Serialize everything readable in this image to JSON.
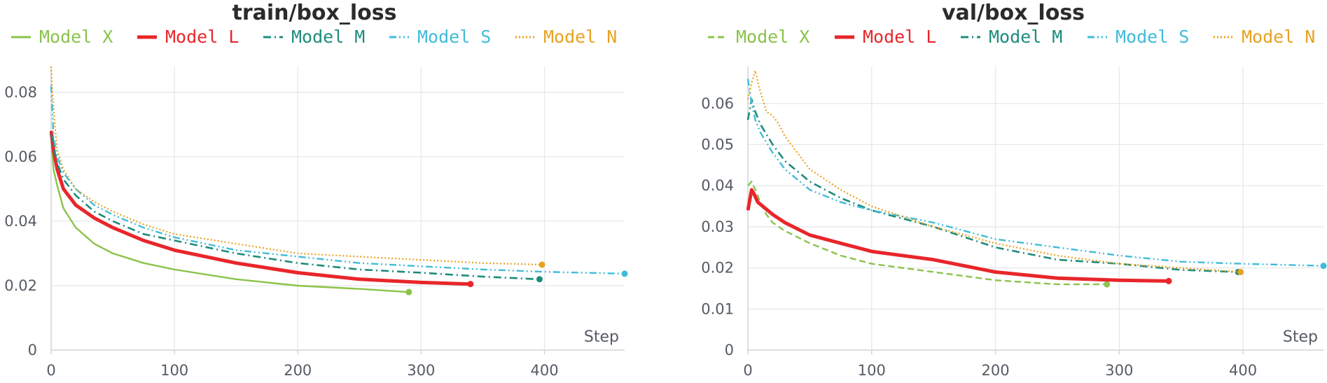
{
  "chart_data": [
    {
      "type": "line",
      "title": "train/box_loss",
      "xlabel": "Step",
      "ylabel": "",
      "xlim": [
        0,
        465
      ],
      "ylim": [
        0,
        0.088
      ],
      "xticks": [
        0,
        100,
        200,
        300,
        400
      ],
      "yticks": [
        0,
        0.02,
        0.04,
        0.06,
        0.08
      ],
      "xtick_labels": [
        "0",
        "100",
        "200",
        "300",
        "400"
      ],
      "ytick_labels": [
        "0",
        "0.02",
        "0.04",
        "0.06",
        "0.08"
      ],
      "grid": true,
      "legend_position": "top",
      "series": [
        {
          "name": "Model X",
          "color": "#8bc34a",
          "style": "solid",
          "x": [
            0,
            2,
            5,
            10,
            20,
            35,
            50,
            75,
            100,
            150,
            200,
            250,
            290
          ],
          "y": [
            0.066,
            0.056,
            0.051,
            0.044,
            0.038,
            0.033,
            0.03,
            0.027,
            0.025,
            0.022,
            0.02,
            0.019,
            0.018
          ]
        },
        {
          "name": "Model L",
          "color": "#e8262b",
          "style": "solid-bold",
          "x": [
            0,
            2,
            5,
            10,
            20,
            35,
            50,
            75,
            100,
            150,
            200,
            250,
            300,
            340
          ],
          "y": [
            0.068,
            0.062,
            0.056,
            0.05,
            0.045,
            0.041,
            0.038,
            0.034,
            0.031,
            0.027,
            0.024,
            0.022,
            0.021,
            0.0205
          ]
        },
        {
          "name": "Model M",
          "color": "#1d8c7c",
          "style": "dashdot",
          "x": [
            0,
            2,
            5,
            10,
            20,
            35,
            50,
            75,
            100,
            150,
            200,
            250,
            300,
            350,
            396
          ],
          "y": [
            0.067,
            0.063,
            0.058,
            0.053,
            0.048,
            0.043,
            0.04,
            0.036,
            0.034,
            0.03,
            0.027,
            0.025,
            0.024,
            0.0228,
            0.022
          ]
        },
        {
          "name": "Model S",
          "color": "#3fbcd9",
          "style": "dashdotdot",
          "x": [
            0,
            2,
            5,
            10,
            20,
            35,
            50,
            75,
            100,
            150,
            200,
            250,
            300,
            350,
            400,
            465
          ],
          "y": [
            0.082,
            0.066,
            0.06,
            0.055,
            0.05,
            0.045,
            0.042,
            0.038,
            0.035,
            0.031,
            0.029,
            0.027,
            0.026,
            0.025,
            0.0243,
            0.0237
          ]
        },
        {
          "name": "Model N",
          "color": "#e8a221",
          "style": "dotted",
          "x": [
            0,
            1,
            3,
            5,
            10,
            20,
            35,
            50,
            75,
            100,
            150,
            200,
            250,
            300,
            350,
            398
          ],
          "y": [
            0.088,
            0.08,
            0.07,
            0.062,
            0.056,
            0.05,
            0.046,
            0.043,
            0.039,
            0.036,
            0.033,
            0.03,
            0.029,
            0.028,
            0.027,
            0.0265
          ]
        }
      ]
    },
    {
      "type": "line",
      "title": "val/box_loss",
      "xlabel": "Step",
      "ylabel": "",
      "xlim": [
        0,
        465
      ],
      "ylim": [
        0,
        0.069
      ],
      "xticks": [
        0,
        100,
        200,
        300,
        400
      ],
      "yticks": [
        0,
        0.01,
        0.02,
        0.03,
        0.04,
        0.05,
        0.06
      ],
      "xtick_labels": [
        "0",
        "100",
        "200",
        "300",
        "400"
      ],
      "ytick_labels": [
        "0",
        "0.01",
        "0.02",
        "0.03",
        "0.04",
        "0.05",
        "0.06"
      ],
      "grid": true,
      "legend_position": "top",
      "series": [
        {
          "name": "Model X",
          "color": "#8bc34a",
          "style": "dashed",
          "x": [
            0,
            3,
            6,
            10,
            15,
            20,
            30,
            50,
            75,
            100,
            150,
            200,
            250,
            290
          ],
          "y": [
            0.04,
            0.041,
            0.039,
            0.036,
            0.033,
            0.031,
            0.029,
            0.026,
            0.023,
            0.021,
            0.019,
            0.017,
            0.016,
            0.016
          ]
        },
        {
          "name": "Model L",
          "color": "#e8262b",
          "style": "solid-bold",
          "x": [
            0,
            3,
            5,
            8,
            12,
            20,
            30,
            50,
            75,
            100,
            150,
            200,
            250,
            300,
            340
          ],
          "y": [
            0.034,
            0.039,
            0.038,
            0.036,
            0.035,
            0.033,
            0.031,
            0.028,
            0.026,
            0.024,
            0.022,
            0.019,
            0.0175,
            0.017,
            0.0168
          ]
        },
        {
          "name": "Model M",
          "color": "#1d8c7c",
          "style": "dashdot",
          "x": [
            0,
            3,
            6,
            10,
            20,
            30,
            50,
            75,
            100,
            150,
            200,
            250,
            300,
            350,
            396
          ],
          "y": [
            0.056,
            0.061,
            0.058,
            0.055,
            0.05,
            0.046,
            0.041,
            0.037,
            0.034,
            0.03,
            0.025,
            0.022,
            0.021,
            0.0195,
            0.019
          ]
        },
        {
          "name": "Model S",
          "color": "#3fbcd9",
          "style": "dashdotdot",
          "x": [
            0,
            3,
            6,
            10,
            20,
            30,
            50,
            75,
            100,
            150,
            200,
            250,
            300,
            350,
            400,
            465
          ],
          "y": [
            0.066,
            0.06,
            0.056,
            0.053,
            0.048,
            0.044,
            0.039,
            0.036,
            0.034,
            0.031,
            0.027,
            0.025,
            0.023,
            0.0215,
            0.021,
            0.0205
          ]
        },
        {
          "name": "Model N",
          "color": "#e8a221",
          "style": "dotted",
          "x": [
            0,
            3,
            6,
            9,
            12,
            15,
            20,
            25,
            30,
            40,
            50,
            75,
            100,
            150,
            200,
            250,
            300,
            350,
            398
          ],
          "y": [
            0.061,
            0.065,
            0.068,
            0.064,
            0.061,
            0.058,
            0.057,
            0.055,
            0.052,
            0.048,
            0.044,
            0.039,
            0.035,
            0.03,
            0.026,
            0.023,
            0.021,
            0.02,
            0.019
          ]
        }
      ]
    }
  ]
}
